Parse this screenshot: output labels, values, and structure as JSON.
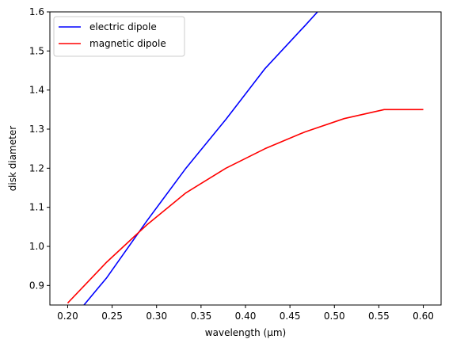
{
  "chart_data": {
    "type": "line",
    "xlabel": "wavelength (μm)",
    "ylabel": "disk diameter",
    "xlim": [
      0.18,
      0.62
    ],
    "ylim": [
      0.85,
      1.6
    ],
    "xticks": [
      0.2,
      0.25,
      0.3,
      0.35,
      0.4,
      0.45,
      0.5,
      0.55,
      0.6
    ],
    "xtick_labels": [
      "0.20",
      "0.25",
      "0.30",
      "0.35",
      "0.40",
      "0.45",
      "0.50",
      "0.55",
      "0.60"
    ],
    "yticks": [
      0.9,
      1.0,
      1.1,
      1.2,
      1.3,
      1.4,
      1.5,
      1.6
    ],
    "ytick_labels": [
      "0.9",
      "1.0",
      "1.1",
      "1.2",
      "1.3",
      "1.4",
      "1.5",
      "1.6"
    ],
    "grid": false,
    "legend_position": "top-left",
    "series": [
      {
        "name": "electric dipole",
        "color": "#0000ff",
        "x": [
          0.2,
          0.244,
          0.289,
          0.333,
          0.378,
          0.422,
          0.467,
          0.511
        ],
        "y": [
          0.8,
          0.92,
          1.065,
          1.2,
          1.325,
          1.455,
          1.565,
          1.675
        ]
      },
      {
        "name": "magnetic dipole",
        "color": "#ff0000",
        "x": [
          0.2,
          0.244,
          0.289,
          0.333,
          0.378,
          0.422,
          0.467,
          0.511,
          0.556,
          0.6
        ],
        "y": [
          0.855,
          0.96,
          1.055,
          1.137,
          1.2,
          1.25,
          1.293,
          1.327,
          1.35,
          1.35
        ]
      }
    ]
  }
}
